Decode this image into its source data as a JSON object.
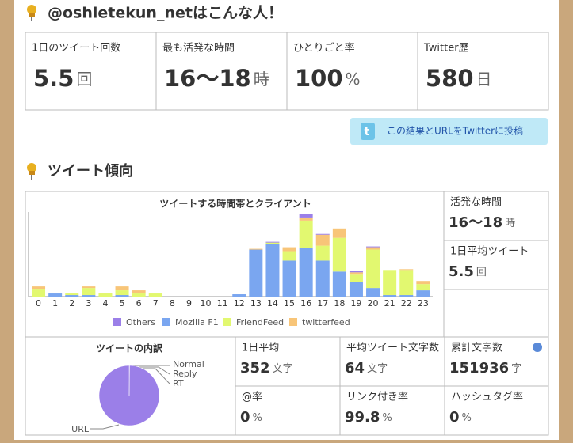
{
  "header": {
    "title": "@oshietekun_netはこんな人！"
  },
  "stats": [
    {
      "label": "1日のツイート回数",
      "value": 5.5,
      "unit": "回"
    },
    {
      "label": "最も活発な時間",
      "value": "16～18",
      "unit": "時"
    },
    {
      "label": "ひとりごと率",
      "value": 100,
      "unit": "%"
    },
    {
      "label": "Twitter歴",
      "value": 580,
      "unit": "日"
    }
  ],
  "share_button": "この結果とURLをTwitterに投稿",
  "section_title": "ツイート傾向",
  "side_stats": [
    {
      "label": "活発な時間",
      "value": "16〜18",
      "unit": "時"
    },
    {
      "label": "1日平均ツイート",
      "value": 5.5,
      "unit": "回"
    }
  ],
  "breakdown_stats": [
    {
      "label": "1日平均",
      "value": 352,
      "unit": "文字"
    },
    {
      "label": "平均ツイート文字数",
      "value": 64,
      "unit": "文字"
    },
    {
      "label": "累計文字数",
      "value": 151936,
      "unit": "字"
    },
    {
      "label": "@率",
      "value": 0,
      "unit": "%"
    },
    {
      "label": "リンク付き率",
      "value": 99.8,
      "unit": "%"
    },
    {
      "label": "ハッシュタグ率",
      "value": 0,
      "unit": "%"
    }
  ],
  "chart_data": [
    {
      "type": "bar",
      "title": "ツイートする時間帯とクライアント",
      "stacked": true,
      "categories": [
        "0",
        "1",
        "2",
        "3",
        "4",
        "5",
        "6",
        "7",
        "8",
        "9",
        "10",
        "11",
        "12",
        "13",
        "14",
        "15",
        "16",
        "17",
        "18",
        "19",
        "20",
        "21",
        "22",
        "23"
      ],
      "ylim": [
        0,
        108
      ],
      "series": [
        {
          "name": "Others",
          "color": "#9b7fe8",
          "values": [
            0,
            0,
            0,
            0,
            0,
            0,
            0,
            0,
            0,
            0,
            0,
            0,
            0,
            0,
            1,
            0,
            4,
            1,
            0,
            2,
            1,
            0,
            0,
            0
          ]
        },
        {
          "name": "Mozilla F1",
          "color": "#7aa6f0",
          "values": [
            0,
            4,
            2,
            2,
            0,
            2,
            0,
            0,
            0,
            0,
            0,
            0,
            3,
            60,
            67,
            46,
            62,
            46,
            32,
            19,
            11,
            2,
            2,
            8
          ]
        },
        {
          "name": "FriendFeed",
          "color": "#e2f870",
          "values": [
            10,
            0,
            2,
            9,
            4,
            6,
            4,
            4,
            0,
            0,
            0,
            0,
            0,
            0,
            2,
            12,
            35,
            19,
            43,
            10,
            49,
            32,
            32,
            8
          ]
        },
        {
          "name": "twitterfeed",
          "color": "#f8c578",
          "values": [
            3,
            0,
            0,
            2,
            1,
            5,
            4,
            0,
            0,
            0,
            0,
            0,
            0,
            1,
            0,
            5,
            4,
            14,
            12,
            2,
            3,
            0,
            1,
            4
          ]
        }
      ]
    },
    {
      "type": "pie",
      "title": "ツイートの内訳",
      "color": "#9b7fe8",
      "categories": [
        "Normal",
        "Reply",
        "RT",
        "URL"
      ],
      "values": [
        0.2,
        0,
        0,
        99.8
      ]
    }
  ]
}
